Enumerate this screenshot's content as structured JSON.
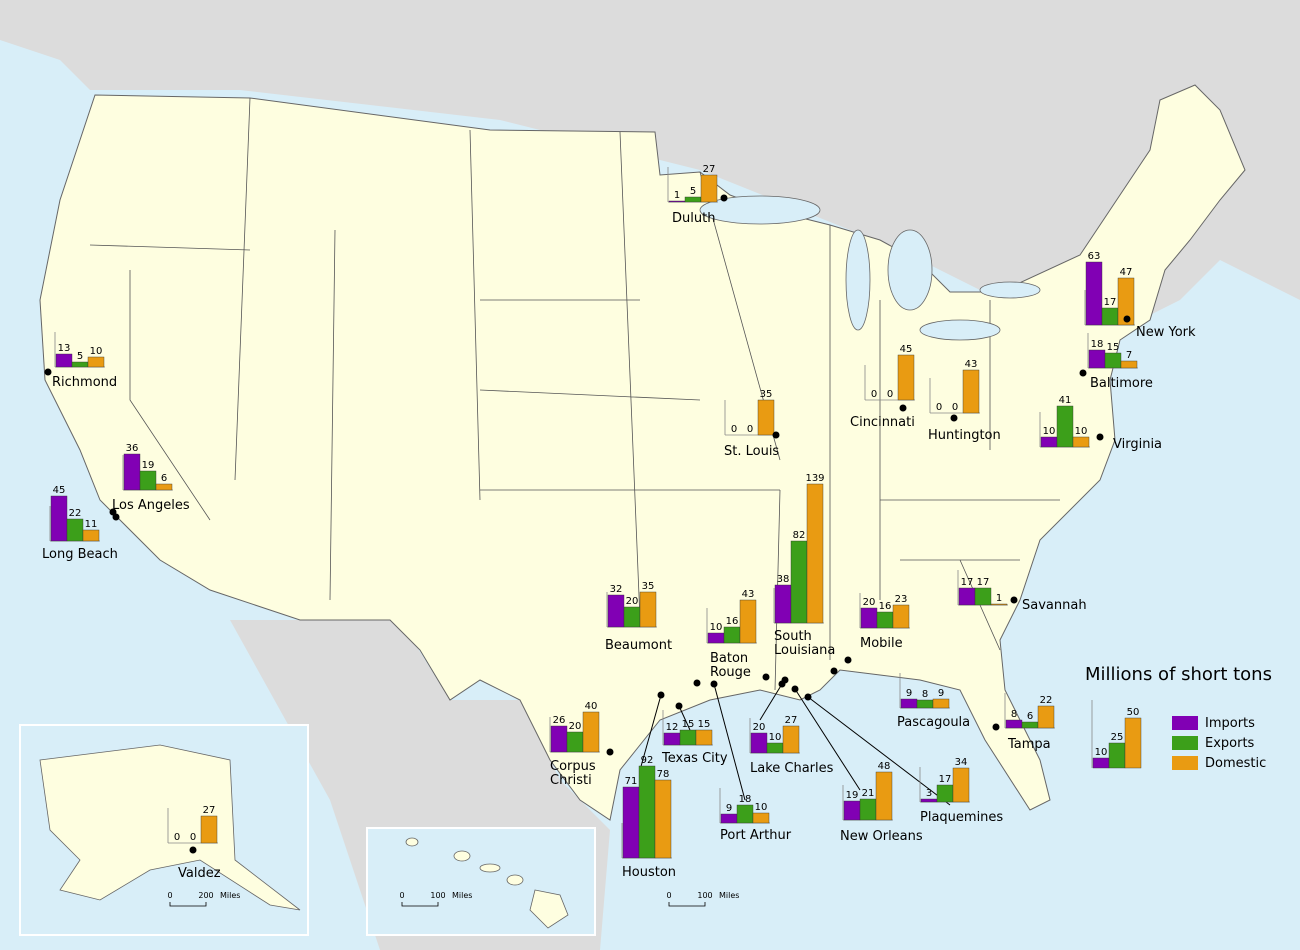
{
  "legend": {
    "title": "Millions of short tons",
    "series": [
      {
        "name": "Imports",
        "color": "#8100b4"
      },
      {
        "name": "Exports",
        "color": "#3c9f1a"
      },
      {
        "name": "Domestic",
        "color": "#e99b12"
      }
    ],
    "sample": [
      10,
      25,
      50
    ]
  },
  "ports": [
    {
      "name": "Richmond",
      "values": [
        13,
        5,
        10
      ]
    },
    {
      "name": "Los Angeles",
      "values": [
        36,
        19,
        6
      ]
    },
    {
      "name": "Long Beach",
      "values": [
        45,
        22,
        11
      ]
    },
    {
      "name": "Duluth",
      "values": [
        1,
        5,
        27
      ]
    },
    {
      "name": "St. Louis",
      "values": [
        0,
        0,
        35
      ]
    },
    {
      "name": "Cincinnati",
      "values": [
        0,
        0,
        45
      ]
    },
    {
      "name": "Huntington",
      "values": [
        0,
        0,
        43
      ]
    },
    {
      "name": "New York",
      "values": [
        63,
        17,
        47
      ]
    },
    {
      "name": "Baltimore",
      "values": [
        18,
        15,
        7
      ]
    },
    {
      "name": "Virginia",
      "values": [
        10,
        41,
        10
      ]
    },
    {
      "name": "Savannah",
      "values": [
        17,
        17,
        1
      ]
    },
    {
      "name": "Tampa",
      "values": [
        8,
        6,
        22
      ]
    },
    {
      "name": "Mobile",
      "values": [
        20,
        16,
        23
      ]
    },
    {
      "name": "Pascagoula",
      "values": [
        9,
        8,
        9
      ]
    },
    {
      "name": "Plaquemines",
      "values": [
        3,
        17,
        34
      ]
    },
    {
      "name": "New Orleans",
      "values": [
        19,
        21,
        48
      ]
    },
    {
      "name": [
        "South",
        "Louisiana"
      ],
      "values": [
        38,
        82,
        139
      ]
    },
    {
      "name": [
        "Baton",
        "Rouge"
      ],
      "values": [
        10,
        16,
        43
      ]
    },
    {
      "name": "Beaumont",
      "values": [
        32,
        20,
        35
      ]
    },
    {
      "name": "Lake Charles",
      "values": [
        20,
        10,
        27
      ]
    },
    {
      "name": "Texas City",
      "values": [
        12,
        15,
        15
      ]
    },
    {
      "name": "Houston",
      "values": [
        71,
        92,
        78
      ]
    },
    {
      "name": "Port Arthur",
      "values": [
        9,
        18,
        10
      ]
    },
    {
      "name": [
        "Corpus",
        "Christi"
      ],
      "values": [
        26,
        20,
        40
      ]
    },
    {
      "name": "Valdez",
      "values": [
        0,
        0,
        27
      ]
    }
  ],
  "scale_bars": [
    {
      "start": 0,
      "end": 200,
      "unit": "Miles"
    },
    {
      "start": 0,
      "end": 100,
      "unit": "Miles"
    },
    {
      "start": 0,
      "end": 100,
      "unit": "Miles"
    }
  ]
}
